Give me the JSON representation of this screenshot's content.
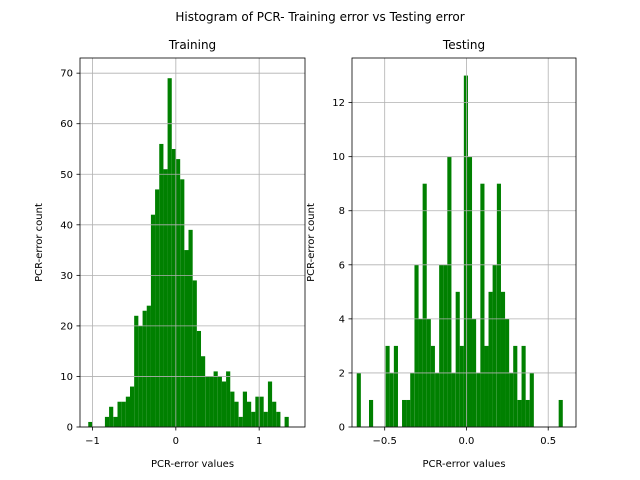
{
  "figure": {
    "title": "Histogram of PCR- Training error vs Testing error"
  },
  "colors": {
    "bar": "#008000",
    "grid": "#b0b0b0",
    "axis": "#000000"
  },
  "chart_data": [
    {
      "type": "histogram",
      "title": "Training",
      "xlabel": "PCR-error values",
      "ylabel": "PCR-error count",
      "xlim": [
        -1.15,
        1.55
      ],
      "ylim": [
        0,
        73
      ],
      "xticks": [
        -1,
        0,
        1
      ],
      "xtick_labels": [
        "−1",
        "0",
        "1"
      ],
      "yticks": [
        0,
        10,
        20,
        30,
        40,
        50,
        60,
        70
      ],
      "grid": true,
      "bin_width": 0.0502,
      "bin_starts": [
        -1.051,
        -1.001,
        -0.951,
        -0.901,
        -0.851,
        -0.801,
        -0.75,
        -0.7,
        -0.65,
        -0.6,
        -0.55,
        -0.5,
        -0.45,
        -0.399,
        -0.349,
        -0.299,
        -0.249,
        -0.199,
        -0.149,
        -0.099,
        -0.049,
        0.002,
        0.052,
        0.102,
        0.152,
        0.202,
        0.252,
        0.302,
        0.353,
        0.403,
        0.453,
        0.503,
        0.553,
        0.603,
        0.653,
        0.703,
        0.754,
        0.804,
        0.854,
        0.904,
        0.954,
        1.004,
        1.054,
        1.105,
        1.155,
        1.205,
        1.255,
        1.305,
        1.355
      ],
      "values": [
        1,
        0,
        0,
        0,
        2,
        4,
        2,
        5,
        5,
        6,
        8,
        22,
        20,
        23,
        24,
        42,
        47,
        56,
        51,
        69,
        55,
        53,
        49,
        35,
        39,
        29,
        19,
        14,
        10,
        10,
        11,
        10,
        9,
        11,
        7,
        5,
        2,
        7,
        5,
        3,
        6,
        6,
        3,
        9,
        5,
        3,
        0,
        2,
        0
      ]
    },
    {
      "type": "histogram",
      "title": "Testing",
      "xlabel": "PCR-error values",
      "ylabel": "PCR-error count",
      "xlim": [
        -0.7,
        0.67
      ],
      "ylim": [
        0,
        13.65
      ],
      "xticks": [
        -0.5,
        0.0,
        0.5
      ],
      "xtick_labels": [
        "−0.5",
        "0.0",
        "0.5"
      ],
      "yticks": [
        0,
        2,
        4,
        6,
        8,
        10,
        12
      ],
      "grid": true,
      "bin_width": 0.0252,
      "bin_starts": [
        -0.671,
        -0.646,
        -0.621,
        -0.596,
        -0.57,
        -0.545,
        -0.52,
        -0.495,
        -0.47,
        -0.444,
        -0.419,
        -0.394,
        -0.369,
        -0.344,
        -0.318,
        -0.293,
        -0.268,
        -0.243,
        -0.218,
        -0.192,
        -0.167,
        -0.142,
        -0.117,
        -0.092,
        -0.066,
        -0.041,
        -0.016,
        0.009,
        0.034,
        0.06,
        0.085,
        0.11,
        0.135,
        0.16,
        0.186,
        0.211,
        0.236,
        0.261,
        0.286,
        0.312,
        0.337,
        0.362,
        0.387,
        0.412,
        0.438,
        0.463,
        0.488,
        0.513,
        0.538,
        0.564,
        0.589
      ],
      "values": [
        2,
        0,
        0,
        1,
        0,
        0,
        0,
        3,
        2,
        3,
        0,
        1,
        1,
        2,
        6,
        4,
        9,
        4,
        3,
        2,
        6,
        6,
        10,
        2,
        5,
        3,
        13,
        10,
        4,
        2,
        9,
        3,
        5,
        6,
        9,
        5,
        4,
        2,
        3,
        1,
        3,
        1,
        2,
        0,
        0,
        0,
        0,
        0,
        0,
        1,
        0
      ]
    }
  ]
}
